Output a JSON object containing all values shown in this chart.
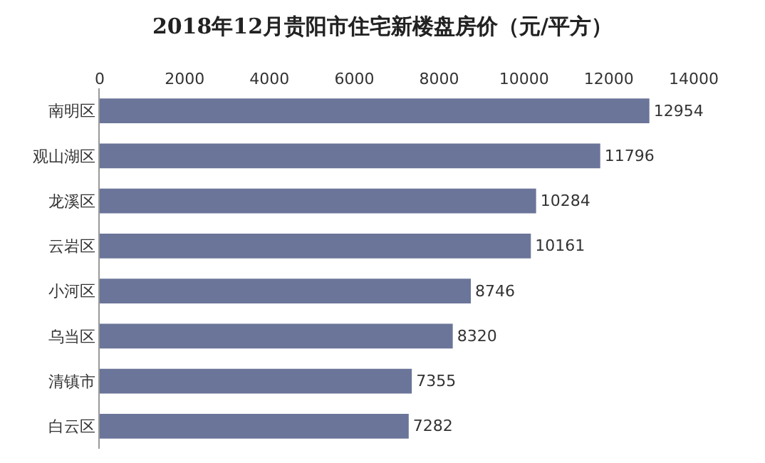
{
  "chart_data": {
    "type": "bar",
    "orientation": "horizontal",
    "title": "2018年12月贵阳市住宅新楼盘房价（元/平方）",
    "categories": [
      "南明区",
      "观山湖区",
      "龙溪区",
      "云岩区",
      "小河区",
      "乌当区",
      "清镇市",
      "白云区"
    ],
    "values": [
      12954,
      11796,
      10284,
      10161,
      8746,
      8320,
      7355,
      7282
    ],
    "color": "#6b7599",
    "data_labels": true,
    "xlim": [
      0,
      14000
    ],
    "xticks": [
      0,
      2000,
      4000,
      6000,
      8000,
      10000,
      12000,
      14000
    ],
    "grid": false
  }
}
